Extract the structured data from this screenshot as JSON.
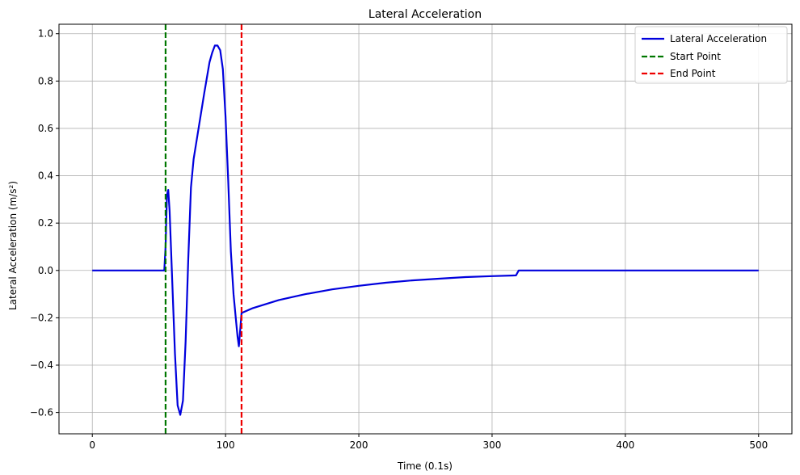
{
  "chart_data": {
    "type": "line",
    "title": "Lateral Acceleration",
    "xlabel": "Time (0.1s)",
    "ylabel": "Lateral Acceleration (m/s²)",
    "xlim": [
      -25,
      525
    ],
    "ylim": [
      -0.69,
      1.04
    ],
    "xticks": [
      0,
      100,
      200,
      300,
      400,
      500
    ],
    "yticks": [
      -0.6,
      -0.4,
      -0.2,
      0.0,
      0.2,
      0.4,
      0.6,
      0.8,
      1.0
    ],
    "xtick_labels": [
      "0",
      "100",
      "200",
      "300",
      "400",
      "500"
    ],
    "ytick_labels": [
      "−0.6",
      "−0.4",
      "−0.2",
      "0.0",
      "0.2",
      "0.4",
      "0.6",
      "0.8",
      "1.0"
    ],
    "grid": true,
    "legend_position": "top-right",
    "series": [
      {
        "name": "Lateral Acceleration",
        "color": "#0000dd",
        "style": "solid",
        "x": [
          0,
          54,
          55,
          56,
          57,
          58,
          60,
          62,
          64,
          66,
          68,
          70,
          72,
          74,
          76,
          78,
          80,
          84,
          88,
          90,
          92,
          94,
          96,
          98,
          100,
          102,
          104,
          106,
          108,
          109,
          110,
          111,
          112,
          120,
          140,
          160,
          180,
          200,
          220,
          240,
          260,
          280,
          300,
          318,
          319,
          320,
          321,
          350,
          400,
          450,
          500
        ],
        "y": [
          0,
          0,
          0.1,
          0.32,
          0.34,
          0.25,
          -0.05,
          -0.35,
          -0.57,
          -0.61,
          -0.55,
          -0.3,
          0.05,
          0.35,
          0.47,
          0.54,
          0.61,
          0.75,
          0.88,
          0.92,
          0.95,
          0.95,
          0.93,
          0.85,
          0.65,
          0.38,
          0.08,
          -0.1,
          -0.22,
          -0.28,
          -0.32,
          -0.25,
          -0.18,
          -0.16,
          -0.125,
          -0.1,
          -0.08,
          -0.065,
          -0.052,
          -0.042,
          -0.035,
          -0.028,
          -0.024,
          -0.021,
          -0.01,
          0.0,
          0.0,
          0.0,
          0.0,
          0.0,
          0.0
        ]
      },
      {
        "name": "Start Point",
        "color": "#007700",
        "style": "dashed",
        "x_vline": 55
      },
      {
        "name": "End Point",
        "color": "#ee0000",
        "style": "dashed",
        "x_vline": 112
      }
    ]
  }
}
